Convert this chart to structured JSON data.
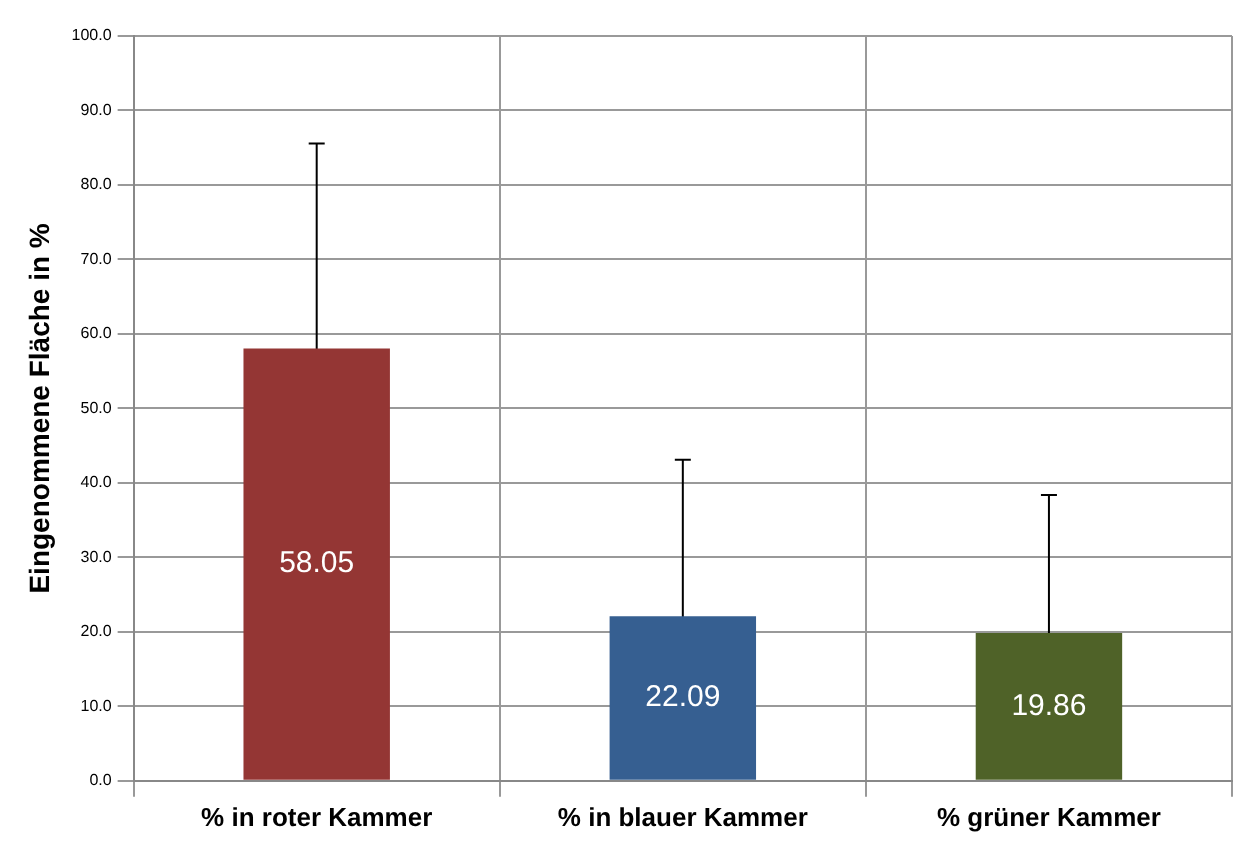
{
  "chart_data": {
    "type": "bar",
    "ylabel": "Eingenommene Fläche in %",
    "categories": [
      "% in roter Kammer",
      "% in blauer Kammer",
      "% grüner Kammer"
    ],
    "values": [
      58.05,
      22.09,
      19.86
    ],
    "colors": [
      "#943634",
      "#365f91",
      "#4f6228"
    ],
    "errors": [
      27.5,
      21.0,
      18.5
    ],
    "ylim": [
      0,
      100
    ],
    "yticks": [
      {
        "value": 0,
        "label": "0.0"
      },
      {
        "value": 10,
        "label": "10.0"
      },
      {
        "value": 20,
        "label": "20.0"
      },
      {
        "value": 30,
        "label": "30.0"
      },
      {
        "value": 40,
        "label": "40.0"
      },
      {
        "value": 50,
        "label": "50.0"
      },
      {
        "value": 60,
        "label": "60.0"
      },
      {
        "value": 70,
        "label": "70.0"
      },
      {
        "value": 80,
        "label": "80.0"
      },
      {
        "value": 90,
        "label": "90.0"
      },
      {
        "value": 100,
        "label": "100.0"
      }
    ],
    "grid": true,
    "data_labels": true
  }
}
